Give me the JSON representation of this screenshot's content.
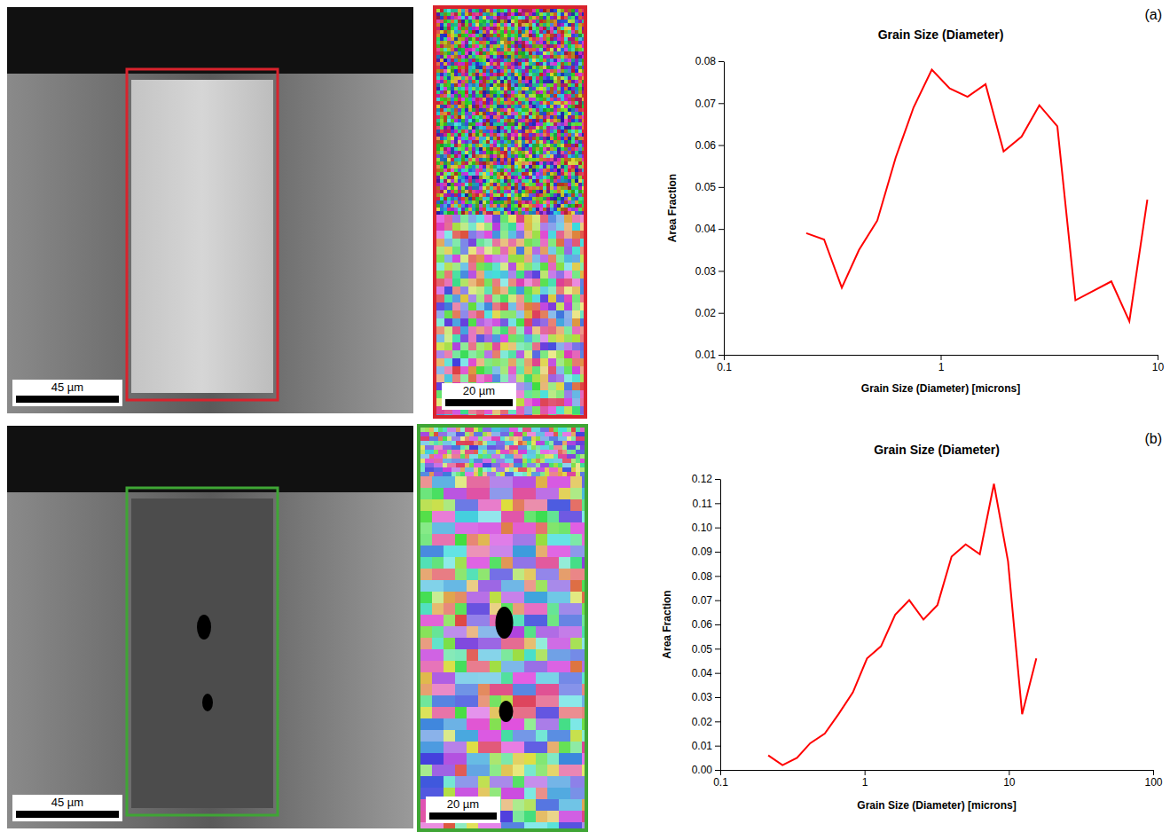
{
  "chart_data": [
    {
      "type": "line",
      "panel_label": "(a)",
      "title": "Grain Size (Diameter)",
      "x_label": "Grain Size (Diameter) [microns]",
      "y_label": "Area Fraction",
      "x": [
        0.24,
        0.29,
        0.35,
        0.42,
        0.51,
        0.62,
        0.75,
        0.91,
        1.1,
        1.33,
        1.61,
        1.95,
        2.36,
        2.85,
        3.45,
        4.18,
        6.12,
        7.41,
        8.97
      ],
      "series": [
        {
          "color": "#ff0000",
          "values": [
            0.039,
            0.0375,
            0.026,
            0.035,
            0.042,
            0.057,
            0.069,
            0.078,
            0.0735,
            0.0715,
            0.0745,
            0.0585,
            0.062,
            0.0695,
            0.0645,
            0.023,
            0.0275,
            0.018,
            0.047
          ]
        }
      ],
      "xlim": [
        0.1,
        10
      ],
      "xticks": [
        0.1,
        1,
        10
      ],
      "ylim": [
        0.01,
        0.08
      ],
      "yticks": [
        0.01,
        0.02,
        0.03,
        0.04,
        0.05,
        0.06,
        0.07,
        0.08
      ],
      "log": "x"
    },
    {
      "type": "line",
      "panel_label": "(b)",
      "title": "Grain Size (Diameter)",
      "x_label": "Grain Size (Diameter) [microns]",
      "y_label": "Area Fraction",
      "x": [
        0.215,
        0.27,
        0.34,
        0.42,
        0.53,
        0.66,
        0.83,
        1.04,
        1.3,
        1.63,
        2.04,
        2.56,
        3.2,
        4.01,
        5.02,
        6.29,
        7.88,
        9.87,
        12.36,
        15.5
      ],
      "series": [
        {
          "color": "#ff0000",
          "values": [
            0.006,
            0.002,
            0.005,
            0.011,
            0.015,
            0.023,
            0.032,
            0.046,
            0.051,
            0.064,
            0.07,
            0.062,
            0.068,
            0.088,
            0.093,
            0.089,
            0.118,
            0.086,
            0.023,
            0.046
          ]
        }
      ],
      "xlim": [
        0.1,
        100
      ],
      "xticks": [
        0.1,
        1,
        10,
        100
      ],
      "ylim": [
        0,
        0.12
      ],
      "yticks": [
        {
          "value": 0,
          "label": "0.00"
        },
        0.01,
        0.02,
        0.03,
        0.04,
        0.05,
        0.06,
        0.07,
        0.08,
        0.09,
        {
          "value": 0.1,
          "label": "0.10"
        },
        0.11,
        0.12
      ],
      "log": "x"
    }
  ],
  "images": [
    {
      "scale_bar": "45 µm",
      "frame_color": "#d9232d"
    },
    {
      "scale_bar": "20 µm",
      "frame_color": "#d9232d"
    },
    {
      "scale_bar": "45 µm",
      "frame_color": "#3fa535"
    },
    {
      "scale_bar": "20 µm",
      "frame_color": "#3fa535"
    }
  ]
}
